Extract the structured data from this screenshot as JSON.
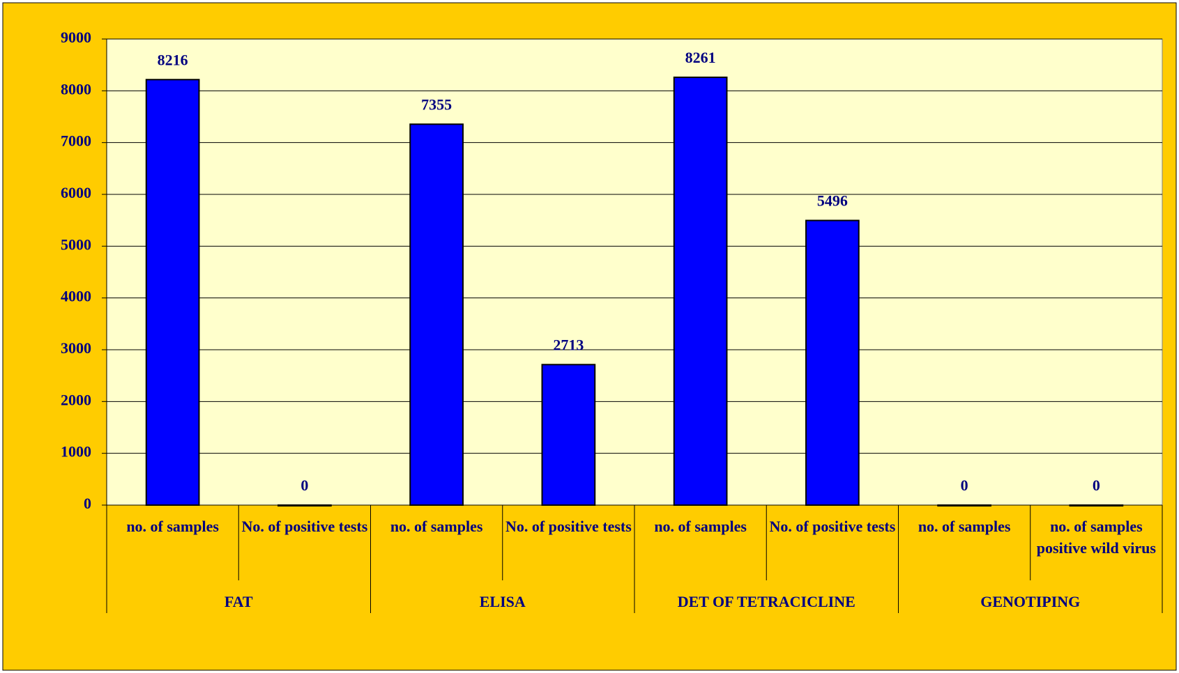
{
  "chart_data": {
    "type": "bar",
    "categories": [
      "no. of samples",
      "No. of positive tests",
      "no. of samples",
      "No. of positive tests",
      "no. of samples",
      "No. of positive tests",
      "no. of samples",
      "no. of samples positive wild virus"
    ],
    "groups": [
      "FAT",
      "ELISA",
      "DET OF TETRACICLINE",
      "GENOTIPING"
    ],
    "values": [
      8216,
      0,
      7355,
      2713,
      8261,
      5496,
      0,
      0
    ],
    "color": "#0000ff",
    "ylim": [
      0,
      9000
    ],
    "yticks": [
      0,
      1000,
      2000,
      3000,
      4000,
      5000,
      6000,
      7000,
      8000,
      9000
    ],
    "grid": true
  }
}
